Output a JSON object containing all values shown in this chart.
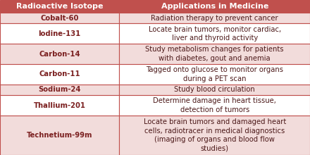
{
  "headers": [
    "Radioactive Isotope",
    "Applications in Medicine"
  ],
  "rows": [
    [
      "Cobalt-60",
      "Radiation therapy to prevent cancer"
    ],
    [
      "Iodine-131",
      "Locate brain tumors, monitor cardiac,\nliver and thyroid activity"
    ],
    [
      "Carbon-14",
      "Study metabolism changes for patients\nwith diabetes, gout and anemia"
    ],
    [
      "Carbon-11",
      "Tagged onto glucose to monitor organs\nduring a PET scan"
    ],
    [
      "Sodium-24",
      "Study blood circulation"
    ],
    [
      "Thallium-201",
      "Determine damage in heart tissue,\ndetection of tumors"
    ],
    [
      "Technetium-99m",
      "Locate brain tumors and damaged heart\ncells, radiotracer in medical diagnostics\n(imaging of organs and blood flow\nstudies)"
    ]
  ],
  "row_bg": [
    "#f2dcdb",
    "#ffffff",
    "#f2dcdb",
    "#ffffff",
    "#f2dcdb",
    "#ffffff",
    "#f2dcdb"
  ],
  "header_bg": "#c0504d",
  "header_text_color": "#ffffff",
  "isotope_text_color": "#7b2020",
  "app_text_color": "#4d1a1a",
  "border_color": "#c0504d",
  "col_split": 0.385,
  "header_fontsize": 8.0,
  "cell_fontsize": 7.2,
  "row_heights_raw": [
    1.15,
    1.0,
    1.85,
    1.85,
    1.85,
    1.0,
    1.85,
    3.6
  ]
}
